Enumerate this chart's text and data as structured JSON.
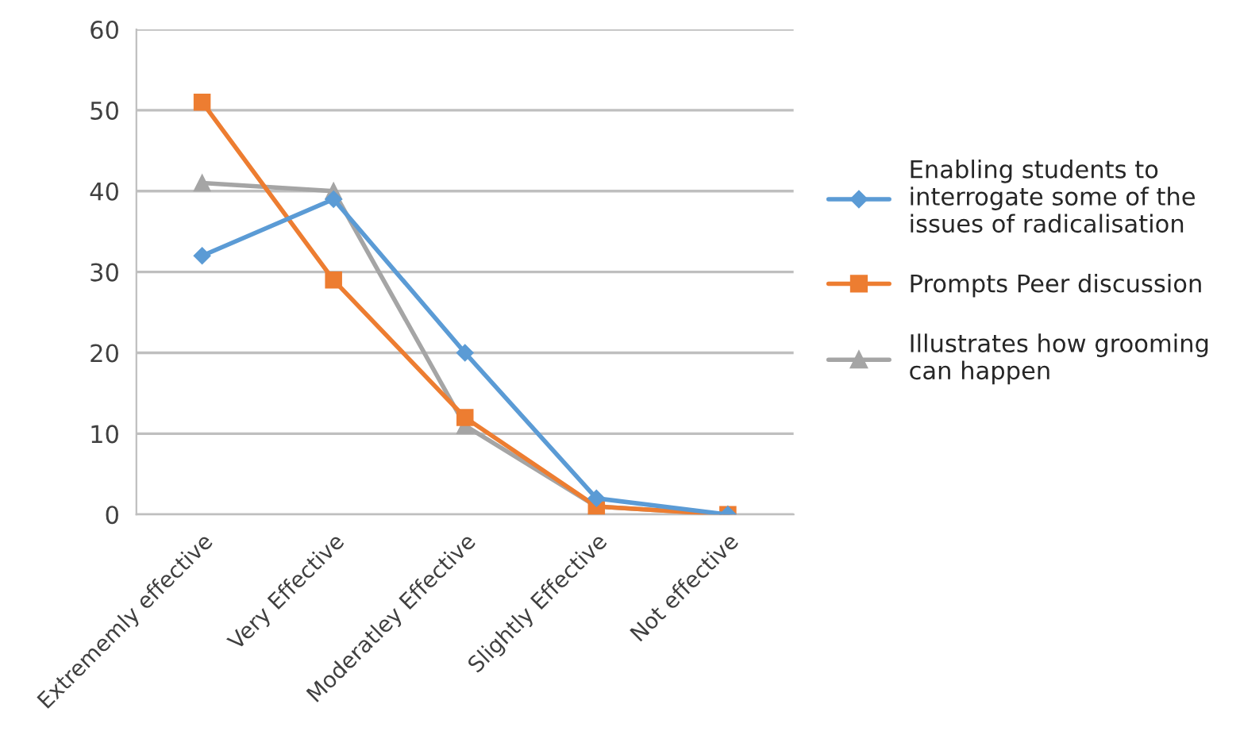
{
  "chart_data": {
    "type": "line",
    "categories": [
      "Extrememly effective",
      "Very Effective",
      "Moderatley Effective",
      "Slightly Effective",
      "Not effective"
    ],
    "series": [
      {
        "name": "Enabling students to interrogate some of the issues of radicalisation",
        "color": "#5b9bd5",
        "marker": "diamond",
        "values": [
          32,
          39,
          20,
          2,
          0
        ]
      },
      {
        "name": "Prompts Peer discussion",
        "color": "#ed7d31",
        "marker": "square",
        "values": [
          51,
          29,
          12,
          1,
          0
        ]
      },
      {
        "name": "Illustrates how grooming can happen",
        "color": "#a5a5a5",
        "marker": "triangle",
        "values": [
          41,
          40,
          11,
          1,
          0
        ]
      }
    ],
    "ylim": [
      0,
      60
    ],
    "yticks": [
      0,
      10,
      20,
      30,
      40,
      50,
      60
    ],
    "grid": "y",
    "legend": "right",
    "line_style": "solid"
  }
}
